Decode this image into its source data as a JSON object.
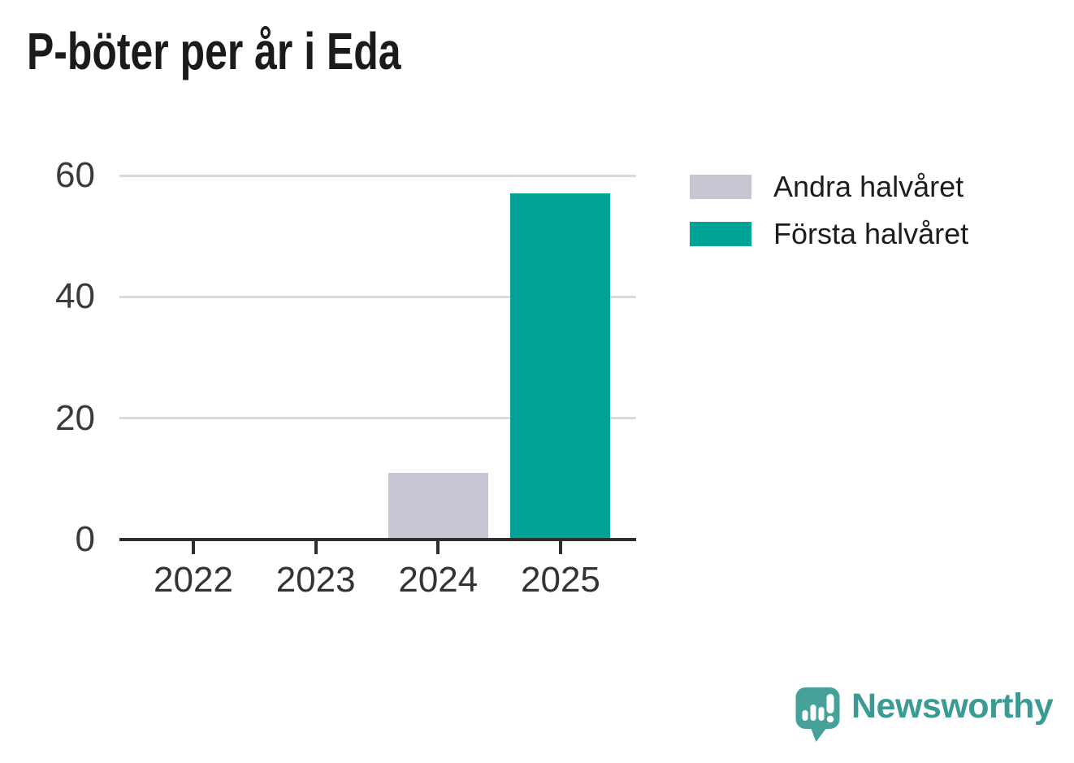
{
  "chart_data": {
    "type": "bar",
    "stacked": true,
    "title": "P-böter per år i Eda",
    "categories": [
      "2022",
      "2023",
      "2024",
      "2025"
    ],
    "series": [
      {
        "name": "Andra halvåret",
        "color": "#c7c5d1",
        "values": [
          0,
          0,
          11,
          0
        ]
      },
      {
        "name": "Första halvåret",
        "color": "#00a296",
        "values": [
          0,
          0,
          0,
          57
        ]
      }
    ],
    "xlabel": "",
    "ylabel": "",
    "ylim": [
      0,
      60
    ],
    "yticks": [
      0,
      20,
      40,
      60
    ],
    "grid": true,
    "legend_position": "right"
  },
  "legend": {
    "items": [
      {
        "label": "Andra halvåret",
        "color": "#c7c5d1"
      },
      {
        "label": "Första halvåret",
        "color": "#00a296"
      }
    ]
  },
  "branding": {
    "wordmark": "Newsworthy",
    "logo_icon": "newsworthy-speech-bubble-bar-chart-icon",
    "color": "#3a9b94"
  },
  "colors": {
    "background": "#ffffff",
    "title_text": "#1b1b1b",
    "axis_line": "#2e2e2e",
    "gridline": "#dadada",
    "tick_label": "#3a3a3a",
    "legend_text": "#1d1d1d"
  }
}
